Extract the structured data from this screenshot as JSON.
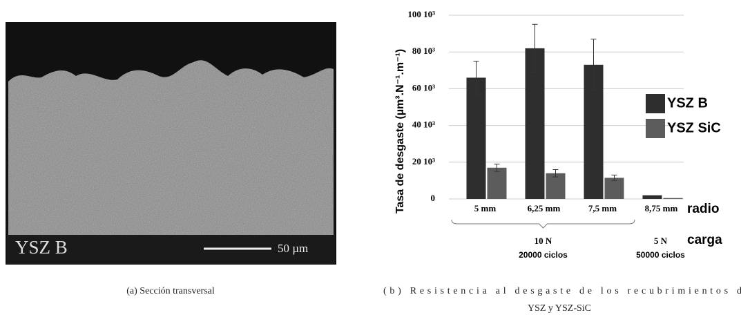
{
  "image": {
    "label": "YSZ B",
    "scale_bar": "50 µm"
  },
  "captions": {
    "a": "(a) Sección transversal",
    "b_line1": "(b) Resistencia al desgaste de los recubrimientos de",
    "b_line2": "YSZ y YSZ-SiC"
  },
  "chart_data": {
    "type": "bar",
    "y_label": "Tasa de desgaste (µm³.N⁻¹.m⁻¹)",
    "categories": [
      "5 mm",
      "6,25 mm",
      "7,5 mm",
      "8,75 mm"
    ],
    "series": [
      {
        "name": "YSZ B",
        "color": "#2e2e2e",
        "values": [
          66000,
          82000,
          73000,
          2000
        ],
        "errors": [
          9000,
          13000,
          14000,
          null
        ]
      },
      {
        "name": "YSZ SiC",
        "color": "#5c5c5c",
        "values": [
          17000,
          14000,
          11500,
          500
        ],
        "errors": [
          2000,
          2000,
          1500,
          null
        ]
      }
    ],
    "ylim": [
      0,
      100000
    ],
    "yticks": [
      0,
      {
        "value": 20000,
        "label": "20 10³"
      },
      {
        "value": 40000,
        "label": "40 10³"
      },
      {
        "value": 60000,
        "label": "60 10³"
      },
      {
        "value": 80000,
        "label": "80 10³"
      },
      {
        "value": 100000,
        "label": "100 10³"
      }
    ],
    "grid": true,
    "legend": "right",
    "category_row_label": "radio",
    "group_row_label": "carga",
    "groups": [
      {
        "load": "10 N",
        "cycles": "20000 ciclos"
      },
      {
        "load": "5 N",
        "cycles": "50000 ciclos"
      }
    ]
  }
}
